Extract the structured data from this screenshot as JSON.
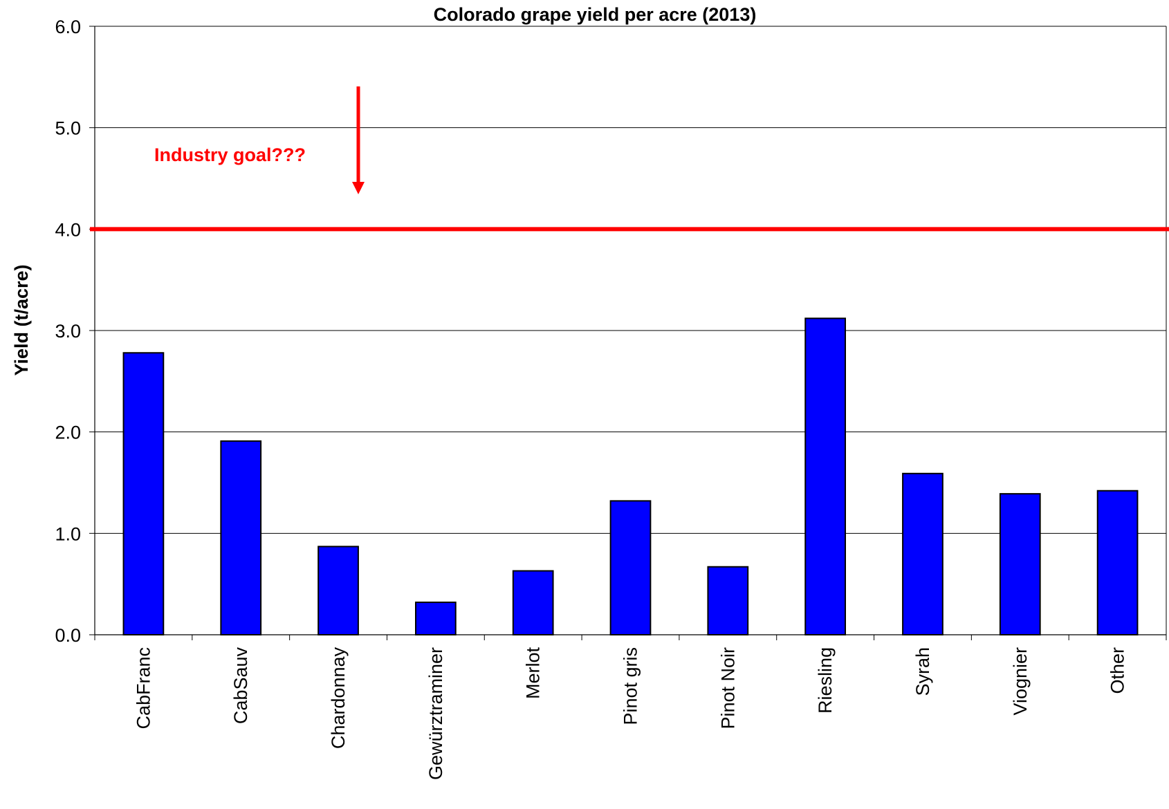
{
  "chart_data": {
    "type": "bar",
    "title": "Colorado grape yield per acre (2013)",
    "xlabel": "",
    "ylabel": "Yield (t/acre)",
    "categories": [
      "CabFranc",
      "CabSauv",
      "Chardonnay",
      "Gewürztraminer",
      "Merlot",
      "Pinot gris",
      "Pinot Noir",
      "Riesling",
      "Syrah",
      "Viognier",
      "Other"
    ],
    "values": [
      2.78,
      1.91,
      0.87,
      0.32,
      0.63,
      1.32,
      0.67,
      3.12,
      1.59,
      1.39,
      1.42
    ],
    "ylim": [
      0,
      6
    ],
    "yticks": [
      0,
      1,
      2,
      3,
      4,
      5,
      6
    ],
    "ytick_labels": [
      "0.0",
      "1.0",
      "2.0",
      "3.0",
      "4.0",
      "5.0",
      "6.0"
    ],
    "grid": "horizontal",
    "legend": "none",
    "bar_color": "#0000ff",
    "reference_line": {
      "value": 4.0,
      "color": "#ff0000"
    },
    "annotation": {
      "text": "Industry goal???",
      "color": "#ff0000",
      "arrow": "down"
    }
  }
}
